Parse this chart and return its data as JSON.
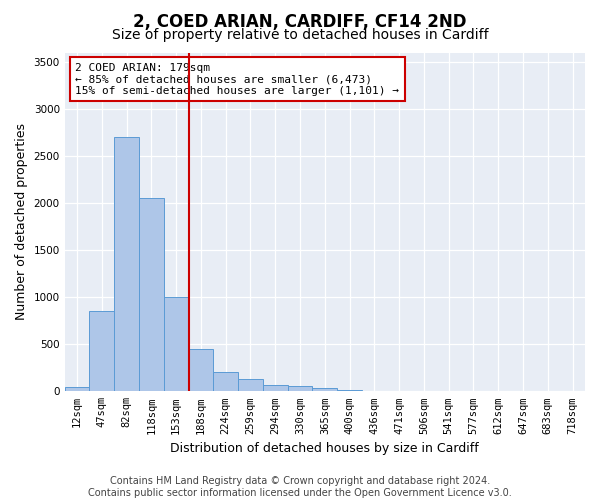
{
  "title": "2, COED ARIAN, CARDIFF, CF14 2ND",
  "subtitle": "Size of property relative to detached houses in Cardiff",
  "xlabel": "Distribution of detached houses by size in Cardiff",
  "ylabel": "Number of detached properties",
  "bin_labels": [
    "12sqm",
    "47sqm",
    "82sqm",
    "118sqm",
    "153sqm",
    "188sqm",
    "224sqm",
    "259sqm",
    "294sqm",
    "330sqm",
    "365sqm",
    "400sqm",
    "436sqm",
    "471sqm",
    "506sqm",
    "541sqm",
    "577sqm",
    "612sqm",
    "647sqm",
    "683sqm",
    "718sqm"
  ],
  "bar_values": [
    50,
    850,
    2700,
    2050,
    1000,
    450,
    200,
    130,
    70,
    60,
    30,
    15,
    5,
    2,
    1,
    0,
    0,
    0,
    0,
    0,
    0
  ],
  "bar_color": "#aec6e8",
  "bar_edge_color": "#5b9bd5",
  "vline_position": 4.5,
  "vline_color": "#cc0000",
  "annotation_text": "2 COED ARIAN: 179sqm\n← 85% of detached houses are smaller (6,473)\n15% of semi-detached houses are larger (1,101) →",
  "annotation_box_color": "#ffffff",
  "annotation_box_edge": "#cc0000",
  "ylim": [
    0,
    3600
  ],
  "yticks": [
    0,
    500,
    1000,
    1500,
    2000,
    2500,
    3000,
    3500
  ],
  "background_color": "#e8edf5",
  "footer_text": "Contains HM Land Registry data © Crown copyright and database right 2024.\nContains public sector information licensed under the Open Government Licence v3.0.",
  "title_fontsize": 12,
  "subtitle_fontsize": 10,
  "axis_label_fontsize": 9,
  "tick_fontsize": 7.5,
  "footer_fontsize": 7
}
